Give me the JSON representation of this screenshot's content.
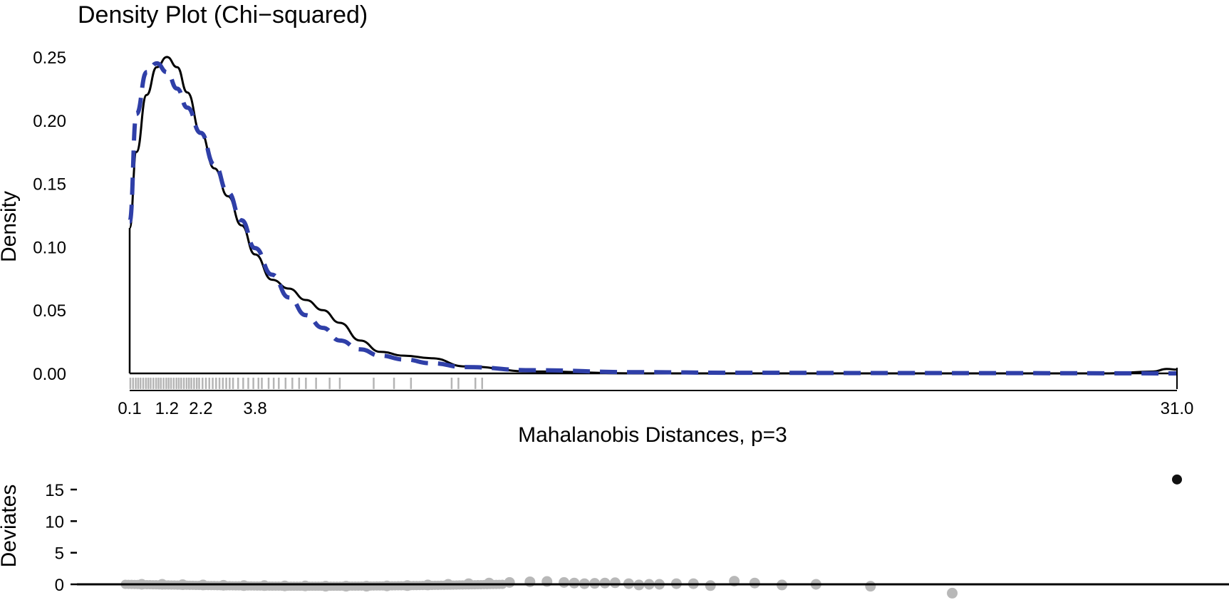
{
  "chart_data": [
    {
      "type": "line",
      "title": "Density Plot (Chi−squared)",
      "xlabel": "Mahalanobis Distances, p=3",
      "ylabel": "Density",
      "xlim": [
        0.1,
        31.0
      ],
      "ylim": [
        0,
        0.25
      ],
      "x_ticks": [
        "0.1",
        "1.2",
        "2.2",
        "3.8",
        "31.0"
      ],
      "x_tick_values": [
        0.1,
        1.2,
        2.2,
        3.8,
        31.0
      ],
      "y_ticks": [
        "0.00",
        "0.05",
        "0.10",
        "0.15",
        "0.20",
        "0.25"
      ],
      "y_tick_values": [
        0,
        0.05,
        0.1,
        0.15,
        0.2,
        0.25
      ],
      "grid": false,
      "series": [
        {
          "style": "solid",
          "color": "#000000",
          "x": [
            0.1,
            0.3,
            0.6,
            0.9,
            1.2,
            1.5,
            1.8,
            2.2,
            2.6,
            3.0,
            3.4,
            3.8,
            4.3,
            4.8,
            5.3,
            5.8,
            6.3,
            6.9,
            7.5,
            8.2,
            9.0,
            10.0,
            12.0,
            15.0,
            18.0,
            22.0,
            26.0,
            29.0,
            30.3,
            30.7,
            31.0
          ],
          "y": [
            0.115,
            0.175,
            0.22,
            0.242,
            0.25,
            0.242,
            0.222,
            0.19,
            0.162,
            0.14,
            0.117,
            0.094,
            0.074,
            0.067,
            0.058,
            0.05,
            0.04,
            0.026,
            0.017,
            0.014,
            0.012,
            0.0055,
            0.0015,
            0.0,
            0.0,
            0.0,
            0.0,
            0.0,
            0.0015,
            0.0035,
            0.003
          ]
        },
        {
          "style": "dashed",
          "color": "#2f3fa8",
          "x": [
            0.1,
            0.3,
            0.6,
            0.9,
            1.2,
            1.5,
            1.8,
            2.2,
            2.6,
            3.0,
            3.4,
            3.8,
            4.3,
            4.8,
            5.3,
            5.8,
            6.3,
            6.9,
            7.5,
            8.2,
            9.0,
            10.0,
            12.0,
            15.0,
            18.0,
            22.0,
            26.0,
            29.0,
            31.0
          ],
          "y": [
            0.12,
            0.205,
            0.238,
            0.245,
            0.238,
            0.225,
            0.21,
            0.19,
            0.165,
            0.143,
            0.121,
            0.099,
            0.078,
            0.06,
            0.046,
            0.036,
            0.026,
            0.019,
            0.014,
            0.011,
            0.008,
            0.005,
            0.0025,
            0.001,
            0.0005,
            0.0003,
            0.0002,
            0.0001,
            0.0
          ]
        }
      ],
      "rug": [
        0.12,
        0.2,
        0.28,
        0.35,
        0.42,
        0.5,
        0.58,
        0.65,
        0.72,
        0.8,
        0.88,
        0.95,
        1.02,
        1.1,
        1.18,
        1.25,
        1.32,
        1.4,
        1.48,
        1.55,
        1.62,
        1.7,
        1.78,
        1.85,
        1.92,
        2.0,
        2.08,
        2.15,
        2.25,
        2.35,
        2.45,
        2.55,
        2.65,
        2.75,
        2.85,
        2.95,
        3.05,
        3.15,
        3.3,
        3.45,
        3.6,
        3.75,
        3.9,
        4.0,
        4.2,
        4.35,
        4.5,
        4.7,
        4.9,
        5.1,
        5.3,
        5.6,
        6.0,
        6.3,
        7.3,
        7.9,
        8.4,
        9.6,
        9.8,
        10.3,
        10.5
      ]
    },
    {
      "type": "scatter",
      "ylabel": "Deviates",
      "y_ticks": [
        "0",
        "5",
        "10",
        "15"
      ],
      "y_tick_values": [
        0,
        5,
        10,
        15
      ],
      "colors": {
        "normal": "#b8b8b8",
        "outlier": "#111111"
      },
      "points": [
        {
          "x": 0.6,
          "y": 0.0
        },
        {
          "x": 1.2,
          "y": 0.0
        },
        {
          "x": 1.8,
          "y": -0.05
        },
        {
          "x": 2.4,
          "y": -0.1
        },
        {
          "x": 3.0,
          "y": -0.15
        },
        {
          "x": 3.6,
          "y": -0.2
        },
        {
          "x": 4.2,
          "y": -0.2
        },
        {
          "x": 4.8,
          "y": -0.25
        },
        {
          "x": 5.4,
          "y": -0.25
        },
        {
          "x": 6.0,
          "y": -0.3
        },
        {
          "x": 6.6,
          "y": -0.3
        },
        {
          "x": 7.2,
          "y": -0.3
        },
        {
          "x": 7.8,
          "y": -0.25
        },
        {
          "x": 8.4,
          "y": -0.2
        },
        {
          "x": 9.0,
          "y": -0.1
        },
        {
          "x": 9.6,
          "y": 0.0
        },
        {
          "x": 10.2,
          "y": 0.1
        },
        {
          "x": 10.8,
          "y": 0.2
        },
        {
          "x": 11.4,
          "y": 0.3
        },
        {
          "x": 12.0,
          "y": 0.4
        },
        {
          "x": 12.5,
          "y": 0.45
        },
        {
          "x": 13.0,
          "y": 0.3
        },
        {
          "x": 13.3,
          "y": 0.2
        },
        {
          "x": 13.6,
          "y": 0.1
        },
        {
          "x": 13.9,
          "y": 0.15
        },
        {
          "x": 14.2,
          "y": 0.2
        },
        {
          "x": 14.5,
          "y": 0.25
        },
        {
          "x": 14.9,
          "y": 0.1
        },
        {
          "x": 15.2,
          "y": -0.1
        },
        {
          "x": 15.5,
          "y": 0.0
        },
        {
          "x": 15.8,
          "y": 0.0
        },
        {
          "x": 16.3,
          "y": 0.1
        },
        {
          "x": 16.8,
          "y": 0.1
        },
        {
          "x": 17.3,
          "y": -0.2
        },
        {
          "x": 18.0,
          "y": 0.5
        },
        {
          "x": 18.6,
          "y": 0.2
        },
        {
          "x": 19.4,
          "y": -0.1
        },
        {
          "x": 20.4,
          "y": 0.0
        },
        {
          "x": 22.0,
          "y": -0.3
        },
        {
          "x": 24.4,
          "y": -1.4
        },
        {
          "x": 31.0,
          "y": 16.6,
          "outlier": true
        }
      ],
      "x_dense": [
        0.12,
        11.2
      ]
    }
  ]
}
